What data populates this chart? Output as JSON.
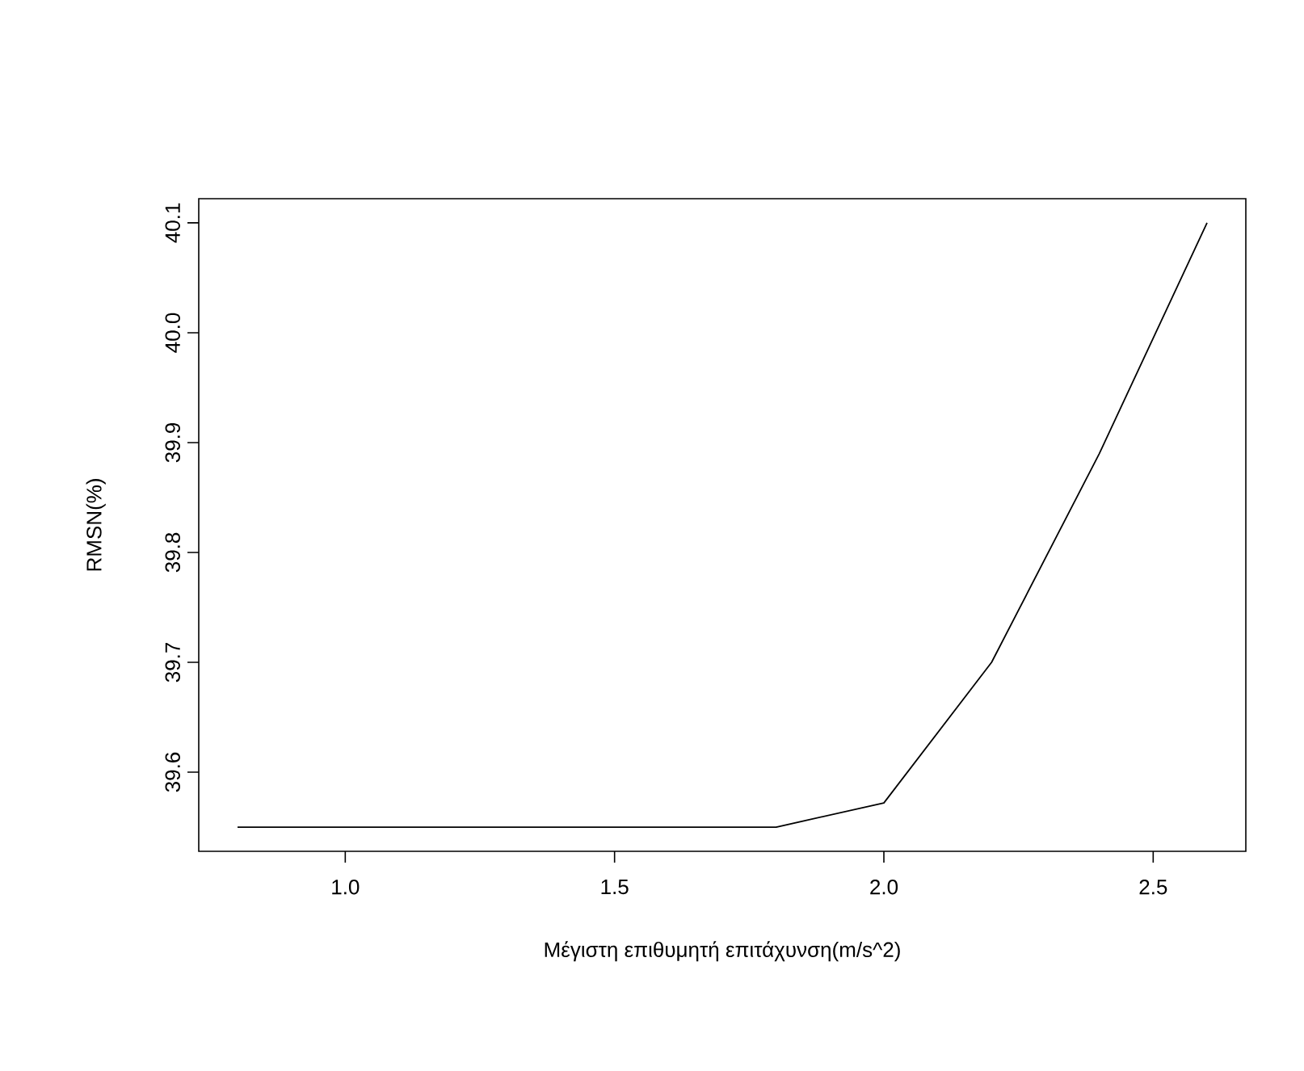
{
  "chart_data": {
    "type": "line",
    "xlabel": "Μέγιστη επιθυμητή επιτάχυνση(m/s^2)",
    "ylabel": "RMSN(%)",
    "x": [
      0.8,
      1.0,
      1.2,
      1.4,
      1.6,
      1.8,
      2.0,
      2.2,
      2.4,
      2.6
    ],
    "series": [
      {
        "color": "#000000",
        "values": [
          39.55,
          39.55,
          39.55,
          39.55,
          39.55,
          39.55,
          39.572,
          39.7,
          39.89,
          40.1
        ]
      }
    ],
    "xlim": [
      0.728,
      2.672
    ],
    "ylim": [
      39.528,
      40.122
    ],
    "xticks": [
      {
        "value": 1.0,
        "label": "1.0"
      },
      {
        "value": 1.5,
        "label": "1.5"
      },
      {
        "value": 2.0,
        "label": "2.0"
      },
      {
        "value": 2.5,
        "label": "2.5"
      }
    ],
    "yticks": [
      {
        "value": 39.6,
        "label": "39.6"
      },
      {
        "value": 39.7,
        "label": "39.7"
      },
      {
        "value": 39.8,
        "label": "39.8"
      },
      {
        "value": 39.9,
        "label": "39.9"
      },
      {
        "value": 40.0,
        "label": "40.0"
      },
      {
        "value": 40.1,
        "label": "40.1"
      }
    ],
    "grid": false,
    "marker": "none",
    "line_style": "solid"
  }
}
